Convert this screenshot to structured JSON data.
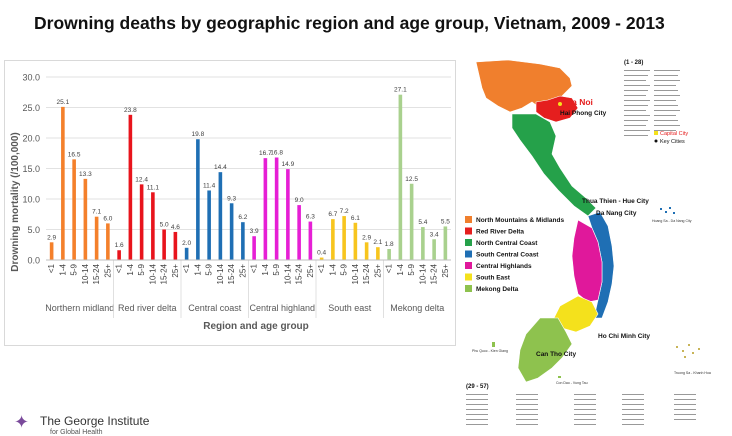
{
  "title": "Drowning deaths by geographic region and age group, Vietnam, 2009 - 2013",
  "logo": {
    "name": "The George Institute",
    "sub": "for Global Health"
  },
  "chart_data": {
    "type": "bar",
    "ylabel": "Drowning mortality (/100,000)",
    "xlabel": "Region and age group",
    "ylim": [
      0,
      30
    ],
    "yticks": [
      "0.0",
      "5.0",
      "10.0",
      "15.0",
      "20.0",
      "25.0",
      "30.0"
    ],
    "grid": true,
    "groups": [
      {
        "name": "Northern midland",
        "color": "#f4802b",
        "categories": [
          "<1",
          "1-4",
          "5-9",
          "10-14",
          "15-24",
          "25+"
        ],
        "values": [
          2.9,
          25.1,
          16.5,
          13.3,
          7.1,
          6.0
        ]
      },
      {
        "name": "Red river delta",
        "color": "#e8141c",
        "categories": [
          "<1",
          "1-4",
          "5-9",
          "10-14",
          "15-24",
          "25+"
        ],
        "values": [
          1.6,
          23.8,
          12.4,
          11.1,
          5.0,
          4.6
        ]
      },
      {
        "name": "Central coast",
        "color": "#1f6fb4",
        "categories": [
          "<1",
          "1-4",
          "5-9",
          "10-14",
          "15-24",
          "25+"
        ],
        "values": [
          2.0,
          19.8,
          11.4,
          14.4,
          9.3,
          6.2
        ]
      },
      {
        "name": "Central highland",
        "color": "#e61fd5",
        "categories": [
          "<1",
          "1-4",
          "5-9",
          "10-14",
          "15-24",
          "25+"
        ],
        "values": [
          3.9,
          16.7,
          16.8,
          14.9,
          9.0,
          6.3
        ]
      },
      {
        "name": "South east",
        "color": "#f7c51e",
        "categories": [
          "<1",
          "1-4",
          "5-9",
          "10-14",
          "15-24",
          "25+"
        ],
        "values": [
          0.4,
          6.7,
          7.2,
          6.1,
          2.9,
          2.1
        ]
      },
      {
        "name": "Mekong delta",
        "color": "#a9d18e",
        "categories": [
          "<1",
          "1-4",
          "5-9",
          "10-14",
          "15-24",
          "25+"
        ],
        "values": [
          1.8,
          27.1,
          12.5,
          5.4,
          3.4,
          5.5
        ]
      }
    ]
  },
  "map": {
    "legend": [
      {
        "label": "North Mountains & Midlands",
        "color": "#f07f2d"
      },
      {
        "label": "Red River Delta",
        "color": "#e51e1e"
      },
      {
        "label": "North Central Coast",
        "color": "#25a14a"
      },
      {
        "label": "South Central Coast",
        "color": "#1f6fb4"
      },
      {
        "label": "Central Highlands",
        "color": "#e0189b"
      },
      {
        "label": "South East",
        "color": "#f4e11c"
      },
      {
        "label": "Mekong Delta",
        "color": "#8ec24e"
      }
    ],
    "cities": [
      "Ha Noi",
      "Hai Phong City",
      "Thua Thien - Hue City",
      "Da Nang City",
      "Ho Chi Minh City",
      "Can Tho City"
    ],
    "key_title_top": "(1 - 28)",
    "key_title_bottom": "(29 - 57)",
    "key_capital": "Capital City",
    "key_cities": "Key Cities",
    "islands": [
      "Hoang Sa - Da Nang City",
      "Truong Sa - Khanh Hoa",
      "Phu Quoc - Kien Giang",
      "Con Dao - Vung Tau"
    ]
  }
}
